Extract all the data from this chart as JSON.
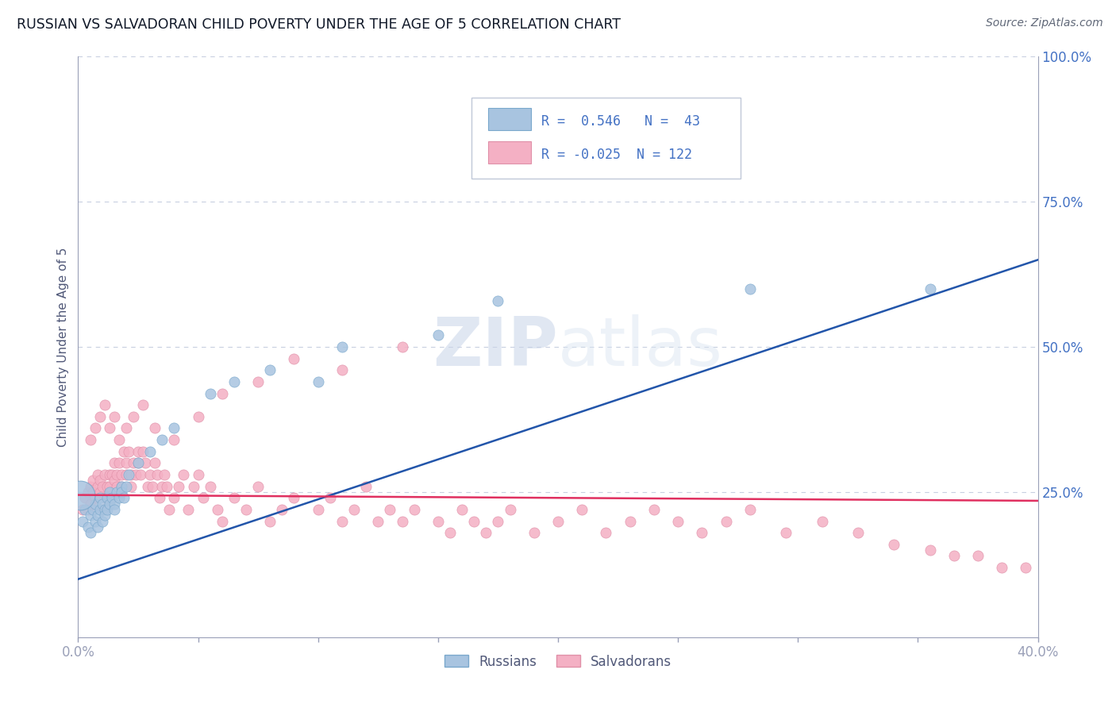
{
  "title": "RUSSIAN VS SALVADORAN CHILD POVERTY UNDER THE AGE OF 5 CORRELATION CHART",
  "source_text": "Source: ZipAtlas.com",
  "ylabel": "Child Poverty Under the Age of 5",
  "xlim": [
    0.0,
    0.4
  ],
  "ylim": [
    0.0,
    1.0
  ],
  "russian_color": "#a8c4e0",
  "russian_edge_color": "#7aa8cc",
  "salvadoran_color": "#f4b0c4",
  "salvadoran_edge_color": "#e090a8",
  "russian_line_color": "#2255aa",
  "salvadoran_line_color": "#e03060",
  "watermark_color": "#ccd8ec",
  "grid_color": "#c8cfe0",
  "background_color": "#ffffff",
  "legend_R_russian": "0.546",
  "legend_N_russian": "43",
  "legend_R_salvadoran": "-0.025",
  "legend_N_salvadoran": "122",
  "tick_color": "#4472c4",
  "axis_label_color": "#505878",
  "russians_x": [
    0.002,
    0.003,
    0.004,
    0.005,
    0.005,
    0.006,
    0.007,
    0.007,
    0.008,
    0.008,
    0.009,
    0.009,
    0.01,
    0.01,
    0.011,
    0.011,
    0.012,
    0.012,
    0.013,
    0.013,
    0.014,
    0.015,
    0.015,
    0.016,
    0.017,
    0.018,
    0.018,
    0.019,
    0.02,
    0.021,
    0.025,
    0.03,
    0.035,
    0.04,
    0.055,
    0.065,
    0.08,
    0.1,
    0.11,
    0.15,
    0.175,
    0.28,
    0.355
  ],
  "russians_y": [
    0.2,
    0.22,
    0.19,
    0.21,
    0.18,
    0.22,
    0.23,
    0.2,
    0.21,
    0.19,
    0.22,
    0.24,
    0.2,
    0.23,
    0.22,
    0.21,
    0.24,
    0.22,
    0.23,
    0.25,
    0.24,
    0.23,
    0.22,
    0.25,
    0.24,
    0.26,
    0.25,
    0.24,
    0.26,
    0.28,
    0.3,
    0.32,
    0.34,
    0.36,
    0.42,
    0.44,
    0.46,
    0.44,
    0.5,
    0.52,
    0.58,
    0.6,
    0.6
  ],
  "russians_sizes": [
    80,
    80,
    80,
    80,
    80,
    80,
    80,
    80,
    80,
    80,
    80,
    80,
    80,
    80,
    80,
    80,
    80,
    80,
    80,
    80,
    80,
    80,
    80,
    80,
    80,
    80,
    80,
    80,
    80,
    80,
    80,
    80,
    80,
    80,
    80,
    80,
    80,
    80,
    80,
    80,
    80,
    80,
    80
  ],
  "russian_large_x": [
    0.001
  ],
  "russian_large_y": [
    0.245
  ],
  "salvadorans_x": [
    0.002,
    0.003,
    0.004,
    0.004,
    0.005,
    0.005,
    0.006,
    0.006,
    0.007,
    0.008,
    0.008,
    0.009,
    0.009,
    0.01,
    0.01,
    0.011,
    0.011,
    0.012,
    0.012,
    0.013,
    0.013,
    0.014,
    0.014,
    0.015,
    0.015,
    0.016,
    0.016,
    0.017,
    0.018,
    0.018,
    0.019,
    0.02,
    0.02,
    0.021,
    0.022,
    0.022,
    0.023,
    0.024,
    0.025,
    0.025,
    0.026,
    0.027,
    0.028,
    0.029,
    0.03,
    0.031,
    0.032,
    0.033,
    0.034,
    0.035,
    0.036,
    0.037,
    0.038,
    0.04,
    0.042,
    0.044,
    0.046,
    0.048,
    0.05,
    0.052,
    0.055,
    0.058,
    0.06,
    0.065,
    0.07,
    0.075,
    0.08,
    0.085,
    0.09,
    0.1,
    0.105,
    0.11,
    0.115,
    0.12,
    0.125,
    0.13,
    0.135,
    0.14,
    0.15,
    0.155,
    0.16,
    0.165,
    0.17,
    0.175,
    0.18,
    0.19,
    0.2,
    0.21,
    0.22,
    0.23,
    0.24,
    0.25,
    0.26,
    0.27,
    0.28,
    0.295,
    0.31,
    0.325,
    0.34,
    0.355,
    0.365,
    0.375,
    0.385,
    0.395,
    0.005,
    0.007,
    0.009,
    0.011,
    0.013,
    0.015,
    0.017,
    0.02,
    0.023,
    0.027,
    0.032,
    0.04,
    0.05,
    0.06,
    0.075,
    0.09,
    0.11,
    0.135
  ],
  "salvadorans_y": [
    0.22,
    0.24,
    0.25,
    0.22,
    0.26,
    0.23,
    0.25,
    0.27,
    0.24,
    0.26,
    0.28,
    0.25,
    0.27,
    0.22,
    0.26,
    0.24,
    0.28,
    0.26,
    0.24,
    0.28,
    0.26,
    0.28,
    0.24,
    0.27,
    0.3,
    0.26,
    0.28,
    0.3,
    0.28,
    0.26,
    0.32,
    0.28,
    0.3,
    0.32,
    0.28,
    0.26,
    0.3,
    0.28,
    0.32,
    0.3,
    0.28,
    0.32,
    0.3,
    0.26,
    0.28,
    0.26,
    0.3,
    0.28,
    0.24,
    0.26,
    0.28,
    0.26,
    0.22,
    0.24,
    0.26,
    0.28,
    0.22,
    0.26,
    0.28,
    0.24,
    0.26,
    0.22,
    0.2,
    0.24,
    0.22,
    0.26,
    0.2,
    0.22,
    0.24,
    0.22,
    0.24,
    0.2,
    0.22,
    0.26,
    0.2,
    0.22,
    0.2,
    0.22,
    0.2,
    0.18,
    0.22,
    0.2,
    0.18,
    0.2,
    0.22,
    0.18,
    0.2,
    0.22,
    0.18,
    0.2,
    0.22,
    0.2,
    0.18,
    0.2,
    0.22,
    0.18,
    0.2,
    0.18,
    0.16,
    0.15,
    0.14,
    0.14,
    0.12,
    0.12,
    0.34,
    0.36,
    0.38,
    0.4,
    0.36,
    0.38,
    0.34,
    0.36,
    0.38,
    0.4,
    0.36,
    0.34,
    0.38,
    0.42,
    0.44,
    0.48,
    0.46,
    0.5
  ],
  "russian_line_x0": 0.0,
  "russian_line_y0": 0.1,
  "russian_line_x1": 0.4,
  "russian_line_y1": 0.65,
  "salvadoran_line_x0": 0.0,
  "salvadoran_line_y0": 0.245,
  "salvadoran_line_x1": 0.4,
  "salvadoran_line_y1": 0.235
}
